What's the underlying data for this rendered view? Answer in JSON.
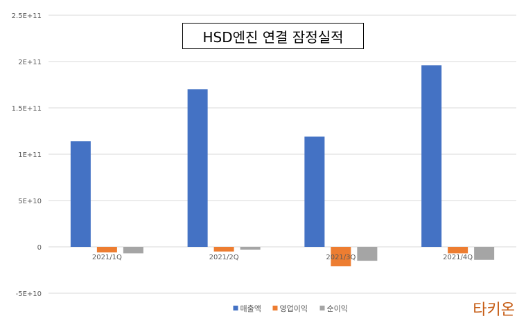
{
  "chart_data": {
    "type": "bar",
    "title": "HSD엔진 연결 잠정실적",
    "categories": [
      "2021/1Q",
      "2021/2Q",
      "2021/3Q",
      "2021/4Q"
    ],
    "series": [
      {
        "name": "매출액",
        "color": "#4472c4",
        "values": [
          114000000000,
          170000000000,
          119000000000,
          196000000000
        ]
      },
      {
        "name": "영업이익",
        "color": "#ed7d31",
        "values": [
          -6000000000,
          -5000000000,
          -21000000000,
          -7000000000
        ]
      },
      {
        "name": "순이익",
        "color": "#a5a5a5",
        "values": [
          -7000000000,
          -3000000000,
          -15000000000,
          -14000000000
        ]
      }
    ],
    "ylim": [
      -50000000000,
      250000000000
    ],
    "yticks": [
      -50000000000,
      0,
      50000000000,
      100000000000,
      150000000000,
      200000000000,
      250000000000
    ],
    "ytick_labels": [
      "-5E+10",
      "0",
      "5E+10",
      "1E+11",
      "1.5E+11",
      "2E+11",
      "2.5E+11"
    ],
    "grid": true,
    "legend_position": "bottom",
    "xlabel": "",
    "ylabel": ""
  },
  "watermark": "타키온"
}
